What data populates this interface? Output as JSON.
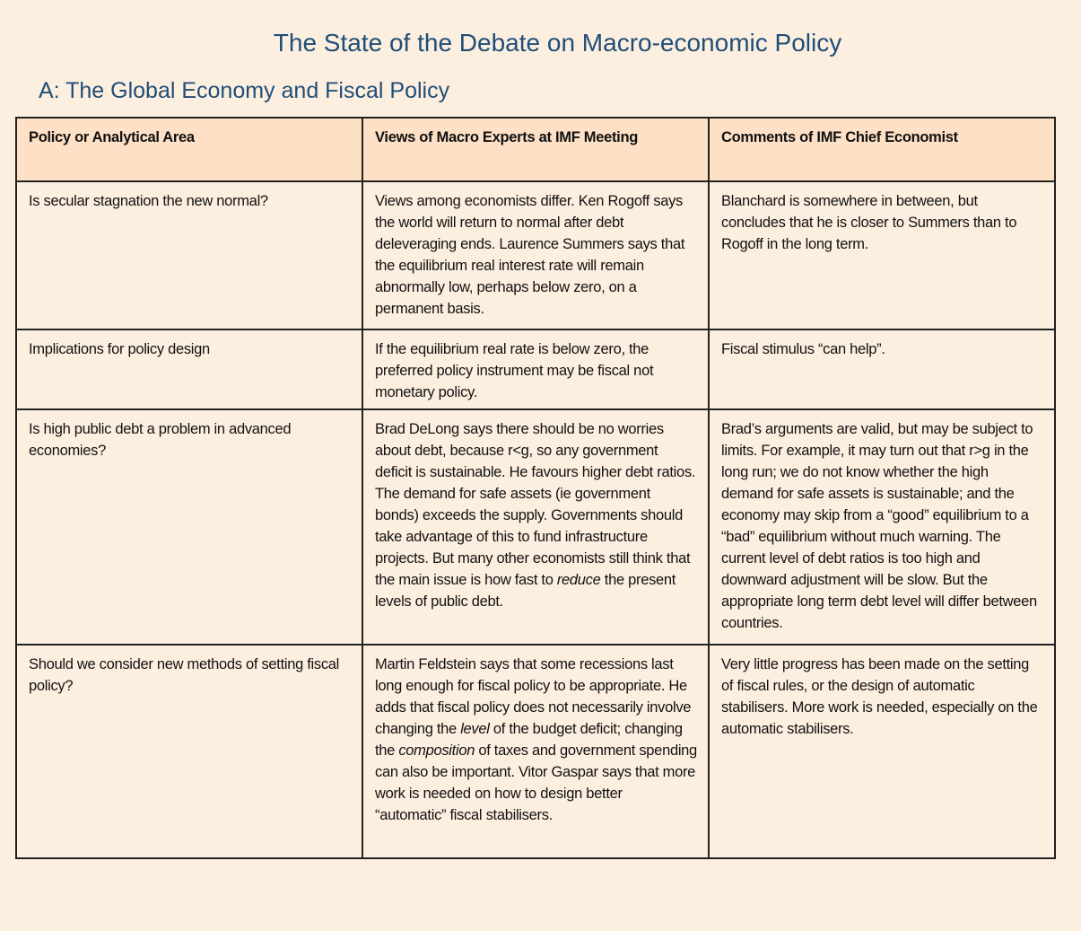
{
  "title": "The State of the Debate on Macro-economic Policy",
  "subtitle": "A: The Global Economy and Fiscal Policy",
  "colors": {
    "title": "#1f4e79",
    "background": "#fdefdf",
    "header_fill": "#fde0c5"
  },
  "table": {
    "headers": [
      "Policy or Analytical Area",
      "Views of Macro Experts at IMF Meeting",
      "Comments of IMF Chief Economist"
    ],
    "rows": [
      {
        "area": "Is secular stagnation the new normal?",
        "views": [
          "Views among economists differ. Ken Rogoff says the world will return to normal after debt deleveraging ends. Laurence Summers says that the equilibrium real interest rate will remain abnormally low, perhaps below zero, on a permanent basis."
        ],
        "comments": "Blanchard is somewhere in between, but concludes that he is closer to Summers than to Rogoff in the long term."
      },
      {
        "area": "Implications  for policy design",
        "views": [
          "If the equilibrium real rate is below zero, the preferred policy instrument may be fiscal not monetary policy."
        ],
        "comments": "Fiscal stimulus “can help”."
      },
      {
        "area": "Is high public debt a problem in advanced economies?",
        "views": [
          "Brad DeLong says there should be no worries about debt, because r<g, so any government deficit is sustainable. He favours higher debt ratios. The demand for safe assets (ie government bonds) exceeds the supply. Governments should take advantage of this to fund infrastructure projects.  But many other economists still think that the main issue is how fast to ",
          "reduce",
          " the present levels of public debt."
        ],
        "comments": "Brad’s arguments are valid, but may be subject to limits. For example, it may turn out that r>g in the long run; we do not know whether the high demand for safe assets is sustainable; and the economy may skip from a “good” equilibrium to a “bad” equilibrium without much warning. The current level of debt ratios is too high and downward adjustment will be slow. But the appropriate long term debt level will differ between countries."
      },
      {
        "area": "Should we consider new methods of setting fiscal policy?",
        "views": [
          "Martin Feldstein says that some recessions last long enough for fiscal policy to be appropriate. He adds that fiscal policy does not necessarily involve changing the ",
          "level",
          " of the budget deficit; changing the ",
          "composition",
          " of taxes and government spending can also be important. Vitor Gaspar says that more work is needed on how to design better “automatic” fiscal stabilisers."
        ],
        "comments": "Very little progress has been made on the setting of fiscal rules, or the design of automatic stabilisers. More work is needed, especially on the automatic stabilisers."
      }
    ]
  }
}
